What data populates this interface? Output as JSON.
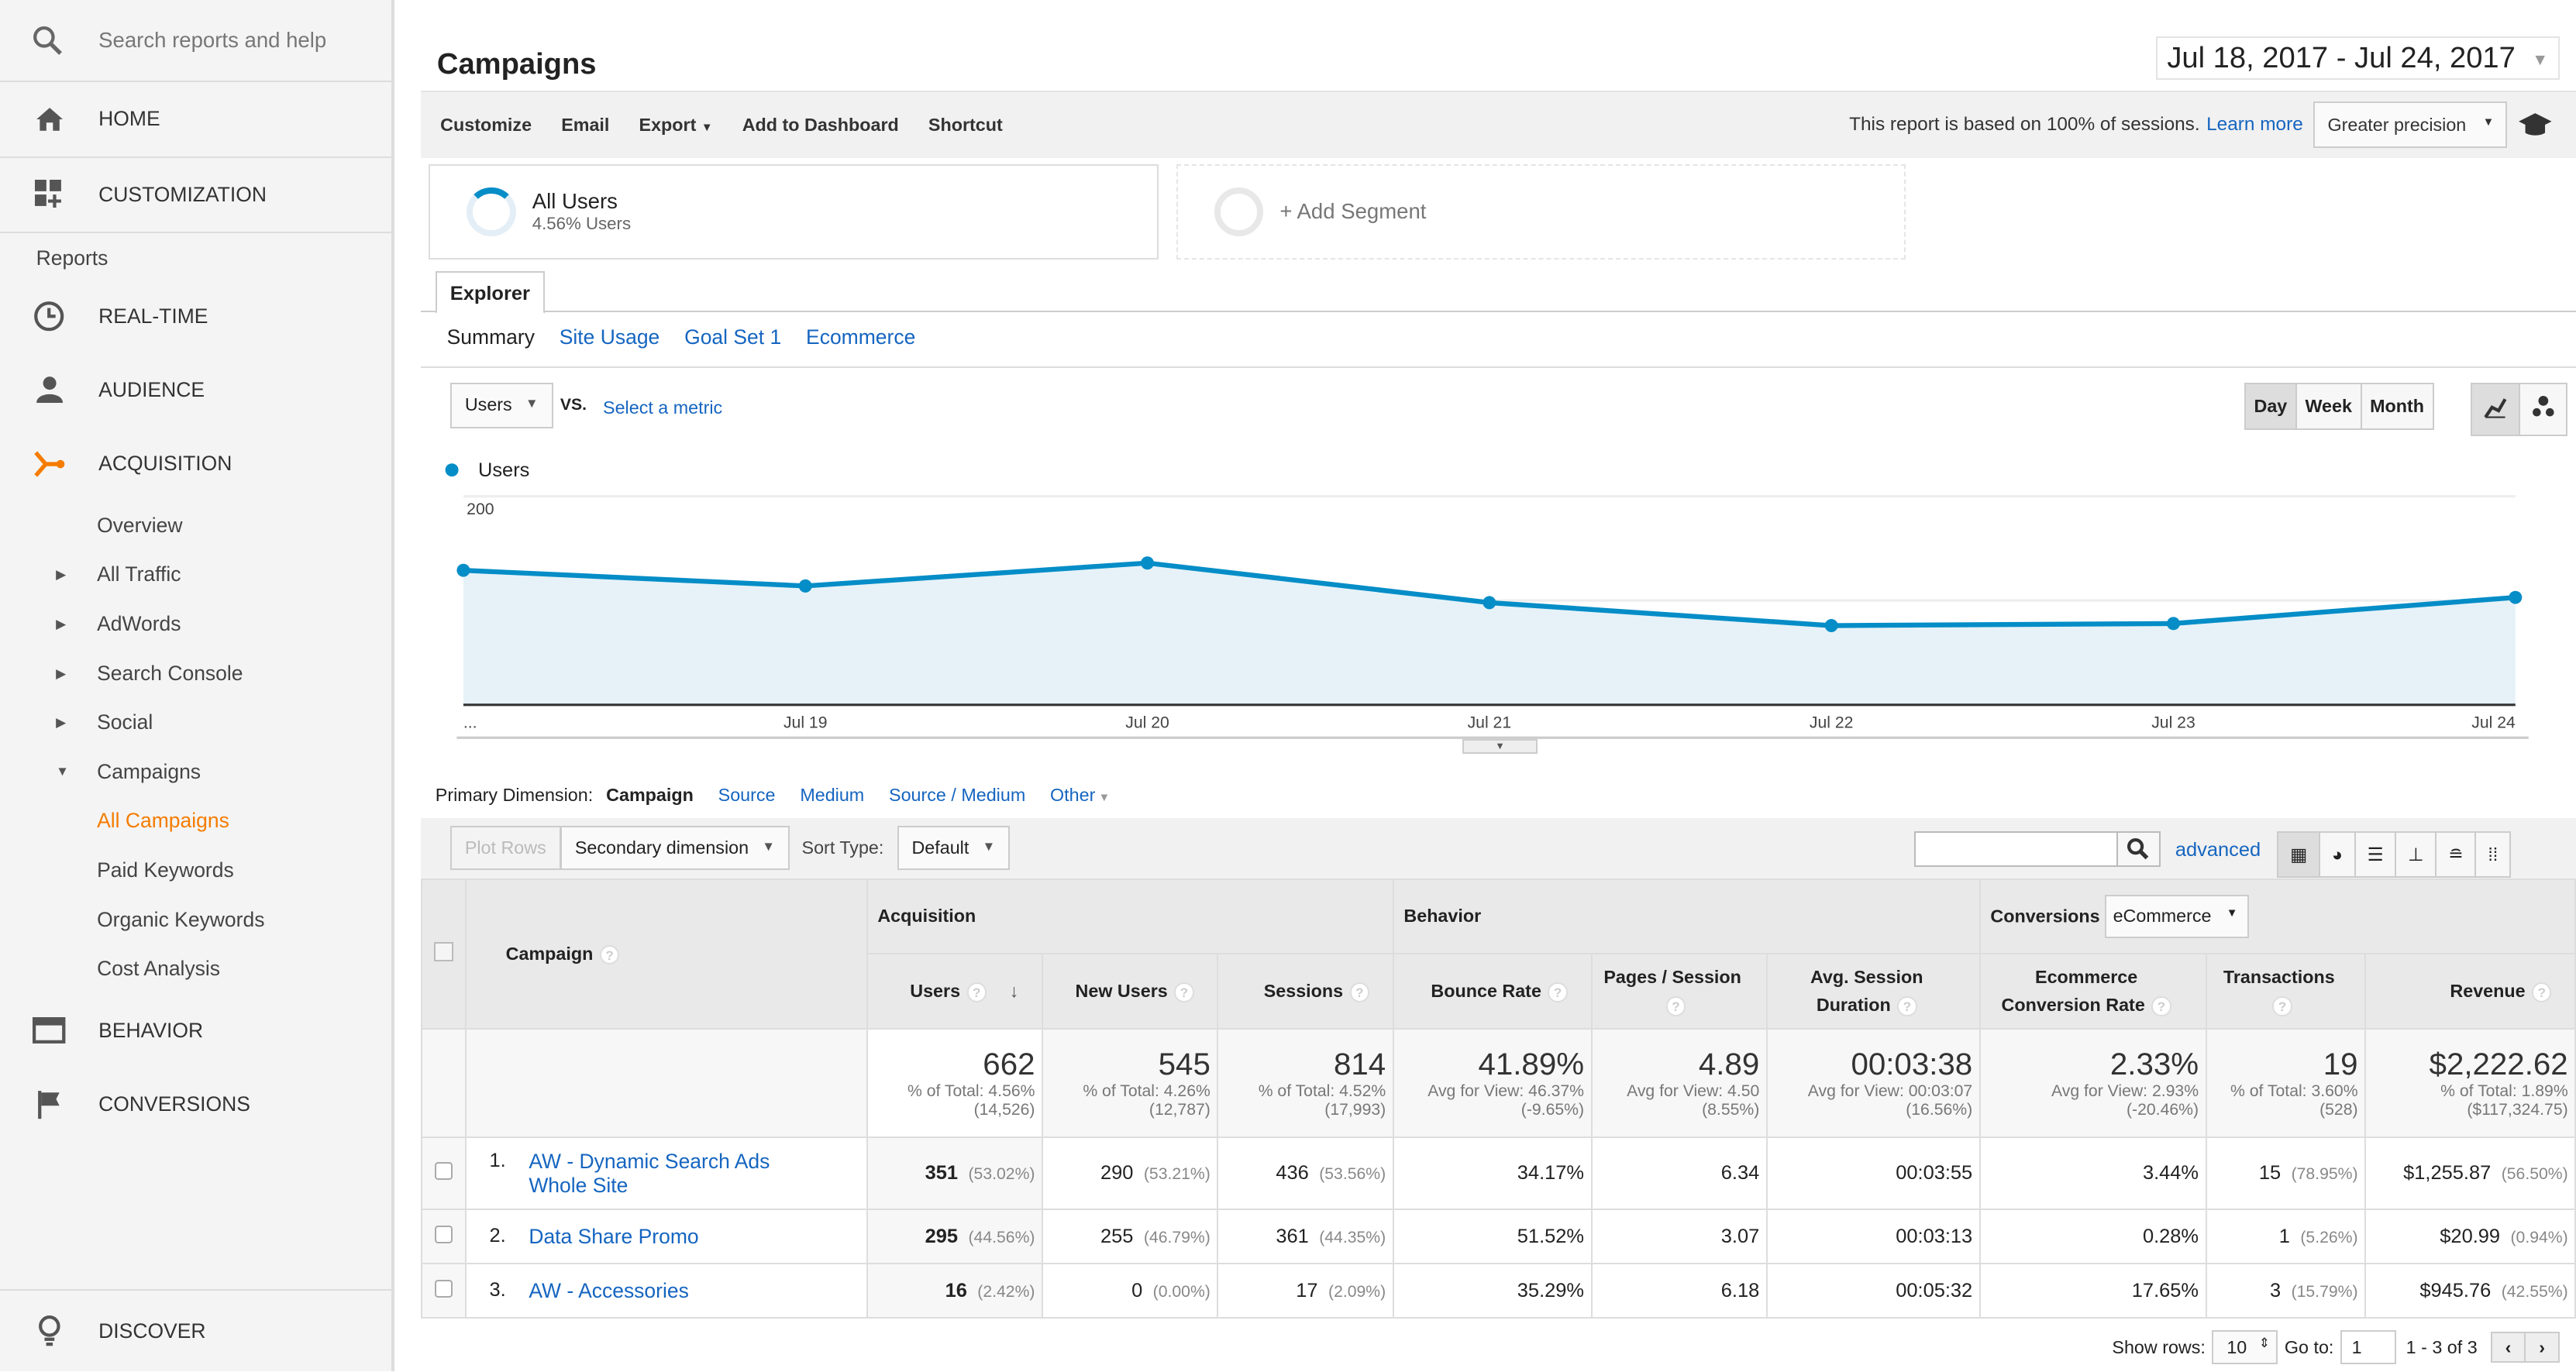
{
  "sidebar": {
    "search_placeholder": "Search reports and help",
    "home": "HOME",
    "customization": "CUSTOMIZATION",
    "reports_label": "Reports",
    "realtime": "REAL-TIME",
    "audience": "AUDIENCE",
    "acquisition": "ACQUISITION",
    "acq_items": [
      "Overview",
      "All Traffic",
      "AdWords",
      "Search Console",
      "Social",
      "Campaigns"
    ],
    "campaign_items": [
      "All Campaigns",
      "Paid Keywords",
      "Organic Keywords",
      "Cost Analysis"
    ],
    "behavior": "BEHAVIOR",
    "conversions": "CONVERSIONS",
    "discover": "DISCOVER",
    "accent": "#f57c00"
  },
  "header": {
    "title": "Campaigns",
    "date_range": "Jul 18, 2017 - Jul 24, 2017"
  },
  "toolbar": {
    "customize": "Customize",
    "email": "Email",
    "export": "Export",
    "add_dashboard": "Add to Dashboard",
    "shortcut": "Shortcut",
    "sampling_text": "This report is based on 100% of sessions.",
    "learn_more": "Learn more",
    "precision": "Greater precision"
  },
  "segments": {
    "all_users": "All Users",
    "all_users_sub": "4.56% Users",
    "add": "+ Add Segment"
  },
  "tabs": {
    "explorer": "Explorer",
    "sub": [
      "Summary",
      "Site Usage",
      "Goal Set 1",
      "Ecommerce"
    ]
  },
  "metric": {
    "selected": "Users",
    "vs": "VS.",
    "select": "Select a metric"
  },
  "period": {
    "day": "Day",
    "week": "Week",
    "month": "Month",
    "active": "Day"
  },
  "chart_data": {
    "type": "area",
    "series": [
      {
        "name": "Users",
        "values": [
          129,
          114,
          136,
          98,
          76,
          78,
          103
        ]
      }
    ],
    "x": [
      "Jul 18",
      "Jul 19",
      "Jul 20",
      "Jul 21",
      "Jul 22",
      "Jul 23",
      "Jul 24"
    ],
    "x_tick_labels": [
      "...",
      "Jul 19",
      "Jul 20",
      "Jul 21",
      "Jul 22",
      "Jul 23",
      "Jul 24"
    ],
    "y_ticks": [
      "200",
      "100"
    ],
    "ylim": [
      0,
      200
    ],
    "color": "#058dc7",
    "fill": "#e6f2f8",
    "legend": "top-left",
    "grid": true
  },
  "dimension": {
    "label": "Primary Dimension:",
    "items": [
      "Campaign",
      "Source",
      "Medium",
      "Source / Medium",
      "Other"
    ]
  },
  "controls": {
    "plot_rows": "Plot Rows",
    "secondary": "Secondary dimension",
    "sort_type": "Sort Type:",
    "sort_value": "Default",
    "advanced": "advanced"
  },
  "table": {
    "groups": {
      "acq": "Acquisition",
      "beh": "Behavior",
      "conv": "Conversions",
      "conv_sel": "eCommerce"
    },
    "campaign_header": "Campaign",
    "columns": [
      "Users",
      "New Users",
      "Sessions",
      "Bounce Rate",
      "Pages / Session",
      "Avg. Session Duration",
      "Ecommerce Conversion Rate",
      "Transactions",
      "Revenue"
    ],
    "totals": [
      {
        "v": "662",
        "s1": "% of Total: 4.56%",
        "s2": "(14,526)"
      },
      {
        "v": "545",
        "s1": "% of Total: 4.26%",
        "s2": "(12,787)"
      },
      {
        "v": "814",
        "s1": "% of Total: 4.52%",
        "s2": "(17,993)"
      },
      {
        "v": "41.89%",
        "s1": "Avg for View: 46.37%",
        "s2": "(-9.65%)"
      },
      {
        "v": "4.89",
        "s1": "Avg for View: 4.50",
        "s2": "(8.55%)"
      },
      {
        "v": "00:03:38",
        "s1": "Avg for View: 00:03:07",
        "s2": "(16.56%)"
      },
      {
        "v": "2.33%",
        "s1": "Avg for View: 2.93%",
        "s2": "(-20.46%)"
      },
      {
        "v": "19",
        "s1": "% of Total: 3.60%",
        "s2": "(528)"
      },
      {
        "v": "$2,222.62",
        "s1": "% of Total: 1.89%",
        "s2": "($117,324.75)"
      }
    ],
    "rows": [
      {
        "n": "1.",
        "name": "AW - Dynamic Search Ads Whole Site",
        "cells": [
          [
            "351",
            "(53.02%)"
          ],
          [
            "290",
            "(53.21%)"
          ],
          [
            "436",
            "(53.56%)"
          ],
          [
            "34.17%",
            ""
          ],
          [
            "6.34",
            ""
          ],
          [
            "00:03:55",
            ""
          ],
          [
            "3.44%",
            ""
          ],
          [
            "15",
            "(78.95%)"
          ],
          [
            "$1,255.87",
            "(56.50%)"
          ]
        ]
      },
      {
        "n": "2.",
        "name": "Data Share Promo",
        "cells": [
          [
            "295",
            "(44.56%)"
          ],
          [
            "255",
            "(46.79%)"
          ],
          [
            "361",
            "(44.35%)"
          ],
          [
            "51.52%",
            ""
          ],
          [
            "3.07",
            ""
          ],
          [
            "00:03:13",
            ""
          ],
          [
            "0.28%",
            ""
          ],
          [
            "1",
            "(5.26%)"
          ],
          [
            "$20.99",
            "(0.94%)"
          ]
        ]
      },
      {
        "n": "3.",
        "name": "AW - Accessories",
        "cells": [
          [
            "16",
            "(2.42%)"
          ],
          [
            "0",
            "(0.00%)"
          ],
          [
            "17",
            "(2.09%)"
          ],
          [
            "35.29%",
            ""
          ],
          [
            "6.18",
            ""
          ],
          [
            "00:05:32",
            ""
          ],
          [
            "17.65%",
            ""
          ],
          [
            "3",
            "(15.79%)"
          ],
          [
            "$945.76",
            "(42.55%)"
          ]
        ]
      }
    ]
  },
  "footer": {
    "show_rows": "Show rows:",
    "rows_value": "10",
    "goto": "Go to:",
    "goto_value": "1",
    "range": "1 - 3 of 3"
  }
}
